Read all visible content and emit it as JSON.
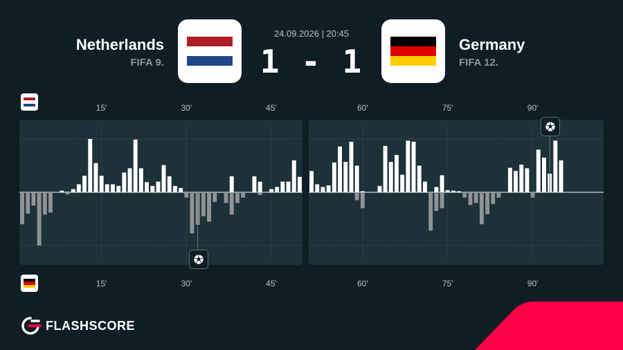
{
  "match": {
    "date_time": "24.09.2026  |  20:45",
    "score": "1 - 1",
    "home": {
      "name": "Netherlands",
      "rank": "FIFA 9.",
      "flag_colors": [
        "#ae1c28",
        "#ffffff",
        "#21468b"
      ]
    },
    "away": {
      "name": "Germany",
      "rank": "FIFA 12.",
      "flag_colors": [
        "#000000",
        "#dd0000",
        "#ffce00"
      ]
    }
  },
  "brand": {
    "name": "FLASHSCORE",
    "accent_color": "#ff0046"
  },
  "colors": {
    "home_bar": "#ffffff",
    "away_bar": "#8f9396",
    "panel": "#1c3138",
    "background": "#0e1e24"
  },
  "icons": {
    "goal": "football-icon",
    "logo": "flashscore-logo-icon"
  },
  "chart_data": {
    "type": "bar",
    "title": "",
    "xlabel": "",
    "ylabel": "",
    "x_ticks": [
      "15'",
      "30'",
      "45'",
      "60'",
      "75'",
      "90'"
    ],
    "x_tick_minutes": [
      15,
      30,
      45,
      60,
      75,
      90
    ],
    "ylim": [
      -1,
      1
    ],
    "grid": "dotted lines at +1 and -1",
    "periods": [
      {
        "name": "first half",
        "start_minute": 1,
        "end_minute": 50
      },
      {
        "name": "second half",
        "start_minute": 51,
        "end_minute": 102
      }
    ],
    "series": [
      {
        "side": "home",
        "values": [
          0,
          0,
          0,
          0,
          0,
          0,
          0,
          0.03,
          0.01,
          0.06,
          0.15,
          0.31,
          1,
          0.55,
          0.31,
          0.15,
          0.15,
          0.12,
          0.37,
          0.45,
          0.99,
          0.45,
          0.19,
          0.12,
          0.2,
          0.51,
          0.3,
          0.12,
          0.08,
          0,
          0,
          0,
          0,
          0,
          0,
          0,
          0,
          0.3,
          0,
          0,
          0,
          0.3,
          0.2,
          0,
          0.06,
          0.1,
          0.2,
          0.2,
          0.6,
          0.29,
          0.4,
          0.15,
          0.1,
          0.13,
          0.56,
          0.86,
          0.57,
          0.95,
          0.5,
          0.02,
          0,
          0,
          0.12,
          0.87,
          0.57,
          0.7,
          0.33,
          0.97,
          0.95,
          0.5,
          0.2,
          0,
          0.1,
          0.32,
          0.04,
          0.03,
          0.02,
          0,
          0,
          0,
          0,
          0,
          0,
          0,
          0,
          0.46,
          0.4,
          0.52,
          0.45,
          0,
          0.8,
          0.65,
          0.35,
          0.97,
          0.6
        ]
      },
      {
        "side": "away",
        "values": [
          -0.6,
          -0.4,
          -0.25,
          -1,
          -0.42,
          -0.38,
          0,
          0,
          -0.04,
          0,
          0,
          0,
          0,
          0,
          0,
          0,
          0,
          0,
          0,
          0,
          0,
          0,
          0,
          0,
          0,
          0,
          0,
          0,
          0,
          -0.1,
          -0.77,
          -0.61,
          -0.45,
          -0.55,
          -0.18,
          0,
          -0.2,
          -0.42,
          -0.2,
          -0.1,
          0,
          0,
          -0.05,
          0,
          0,
          0,
          0,
          0,
          0,
          0,
          0,
          0,
          0,
          0,
          0,
          0,
          0,
          0,
          -0.15,
          -0.3,
          0,
          0,
          0,
          0,
          0,
          0,
          0,
          0,
          0,
          0,
          0,
          -0.72,
          -0.35,
          -0.3,
          0,
          0,
          0,
          -0.1,
          -0.24,
          -0.2,
          -0.6,
          -0.41,
          -0.22,
          -0.1,
          0,
          0,
          0,
          0,
          0,
          -0.1,
          0,
          0,
          0,
          0,
          0
        ]
      }
    ],
    "goals": [
      {
        "minute": 32,
        "side": "away"
      },
      {
        "minute": 93,
        "side": "home"
      }
    ]
  }
}
